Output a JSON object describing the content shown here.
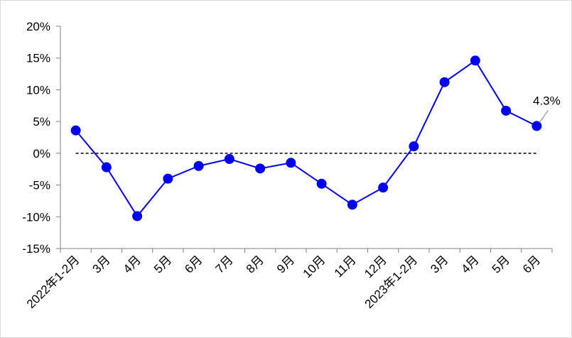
{
  "chart_data": {
    "type": "line",
    "categories": [
      "2022年1-2月",
      "3月",
      "4月",
      "5月",
      "6月",
      "7月",
      "8月",
      "9月",
      "10月",
      "11月",
      "12月",
      "2023年1-2月",
      "3月",
      "4月",
      "5月",
      "6月"
    ],
    "series": [
      {
        "values": [
          3.6,
          -2.2,
          -9.9,
          -4.0,
          -2.0,
          -0.9,
          -2.4,
          -1.5,
          -4.8,
          -8.1,
          -5.4,
          1.1,
          11.2,
          14.6,
          6.7,
          4.3
        ],
        "color": "#0000ee",
        "marker": "circle"
      }
    ],
    "ylim": [
      -15,
      20
    ],
    "yticks": [
      20,
      15,
      10,
      5,
      0,
      -5,
      -10,
      -15
    ],
    "ytick_labels": [
      "20%",
      "15%",
      "10%",
      "5%",
      "0%",
      "-5%",
      "-10%",
      "-15%"
    ],
    "reference_line": {
      "y": 0,
      "style": "dashed",
      "color": "#000000"
    },
    "annotations": [
      {
        "category_index": 15,
        "text": "4.3%"
      }
    ],
    "grid": false,
    "legend": "none"
  }
}
